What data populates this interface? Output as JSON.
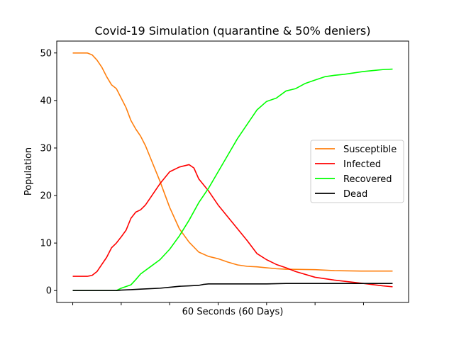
{
  "chart_data": {
    "type": "line",
    "title": "Covid-19 Simulation (quarantine & 50% deniers)",
    "xlabel": "60 Seconds (60 Days)",
    "ylabel": "Population",
    "xlim": [
      -1.65,
      34.65
    ],
    "ylim": [
      -2.5,
      52.5
    ],
    "yticks": [
      0,
      10,
      20,
      30,
      40,
      50
    ],
    "xticks_unlabeled": [
      0,
      5,
      10,
      15,
      20,
      25,
      30
    ],
    "grid": false,
    "legend_position": "center-right",
    "series": [
      {
        "name": "Susceptible",
        "color": "#ff7f0e",
        "points": [
          [
            0,
            50
          ],
          [
            1,
            50
          ],
          [
            1.5,
            50
          ],
          [
            2,
            49.6
          ],
          [
            2.5,
            48.5
          ],
          [
            3,
            47
          ],
          [
            3.5,
            45
          ],
          [
            4,
            43.3
          ],
          [
            4.5,
            42.5
          ],
          [
            5,
            40.5
          ],
          [
            5.5,
            38.5
          ],
          [
            6,
            35.8
          ],
          [
            6.5,
            34
          ],
          [
            7,
            32.5
          ],
          [
            7.5,
            30.5
          ],
          [
            8,
            28
          ],
          [
            9,
            23
          ],
          [
            10,
            17.5
          ],
          [
            11,
            13
          ],
          [
            12,
            10.2
          ],
          [
            13,
            8.1
          ],
          [
            14,
            7.2
          ],
          [
            15,
            6.7
          ],
          [
            16,
            6
          ],
          [
            17,
            5.4
          ],
          [
            18,
            5.1
          ],
          [
            19,
            5
          ],
          [
            20,
            4.8
          ],
          [
            21,
            4.6
          ],
          [
            22,
            4.5
          ],
          [
            25,
            4.4
          ],
          [
            27,
            4.2
          ],
          [
            30,
            4.1
          ],
          [
            33,
            4.1
          ]
        ]
      },
      {
        "name": "Infected",
        "color": "#ff0000",
        "points": [
          [
            0,
            3
          ],
          [
            1,
            3
          ],
          [
            1.5,
            3
          ],
          [
            2,
            3.2
          ],
          [
            2.5,
            4
          ],
          [
            3,
            5.5
          ],
          [
            3.5,
            7
          ],
          [
            4,
            9
          ],
          [
            4.5,
            10
          ],
          [
            5,
            11.3
          ],
          [
            5.5,
            12.7
          ],
          [
            6,
            15.2
          ],
          [
            6.5,
            16.5
          ],
          [
            7,
            17
          ],
          [
            7.5,
            18
          ],
          [
            8,
            19.5
          ],
          [
            9,
            22.5
          ],
          [
            10,
            25
          ],
          [
            11,
            26
          ],
          [
            12,
            26.5
          ],
          [
            12.5,
            25.8
          ],
          [
            13,
            23.5
          ],
          [
            14,
            21
          ],
          [
            15,
            18
          ],
          [
            16,
            15.5
          ],
          [
            17,
            13
          ],
          [
            18,
            10.5
          ],
          [
            19,
            7.8
          ],
          [
            20,
            6.5
          ],
          [
            21,
            5.5
          ],
          [
            22,
            4.8
          ],
          [
            23,
            4
          ],
          [
            25,
            2.8
          ],
          [
            27,
            2.2
          ],
          [
            30,
            1.5
          ],
          [
            32,
            1
          ],
          [
            33,
            0.8
          ]
        ]
      },
      {
        "name": "Recovered",
        "color": "#00ff00",
        "points": [
          [
            0,
            0
          ],
          [
            4.5,
            0
          ],
          [
            5,
            0.5
          ],
          [
            6,
            1.2
          ],
          [
            6.5,
            2.3
          ],
          [
            7,
            3.5
          ],
          [
            8,
            5
          ],
          [
            9,
            6.5
          ],
          [
            10,
            8.7
          ],
          [
            11,
            11.5
          ],
          [
            12,
            14.8
          ],
          [
            13,
            18.5
          ],
          [
            14,
            21.5
          ],
          [
            15,
            25
          ],
          [
            16,
            28.5
          ],
          [
            17,
            32
          ],
          [
            18,
            35
          ],
          [
            19,
            38
          ],
          [
            20,
            39.8
          ],
          [
            21,
            40.5
          ],
          [
            22,
            42
          ],
          [
            23,
            42.5
          ],
          [
            24,
            43.6
          ],
          [
            25,
            44.3
          ],
          [
            26,
            45
          ],
          [
            27,
            45.3
          ],
          [
            28,
            45.5
          ],
          [
            29,
            45.8
          ],
          [
            30,
            46.1
          ],
          [
            31,
            46.3
          ],
          [
            32,
            46.5
          ],
          [
            33,
            46.6
          ]
        ]
      },
      {
        "name": "Dead",
        "color": "#000000",
        "points": [
          [
            0,
            0
          ],
          [
            4.5,
            0
          ],
          [
            5,
            0.1
          ],
          [
            6,
            0.2
          ],
          [
            7,
            0.3
          ],
          [
            9,
            0.5
          ],
          [
            10,
            0.7
          ],
          [
            11,
            0.9
          ],
          [
            12,
            1
          ],
          [
            13,
            1.1
          ],
          [
            13.5,
            1.3
          ],
          [
            14,
            1.4
          ],
          [
            18,
            1.4
          ],
          [
            20,
            1.4
          ],
          [
            22,
            1.5
          ],
          [
            27,
            1.5
          ],
          [
            30,
            1.5
          ],
          [
            33,
            1.5
          ]
        ]
      }
    ]
  }
}
